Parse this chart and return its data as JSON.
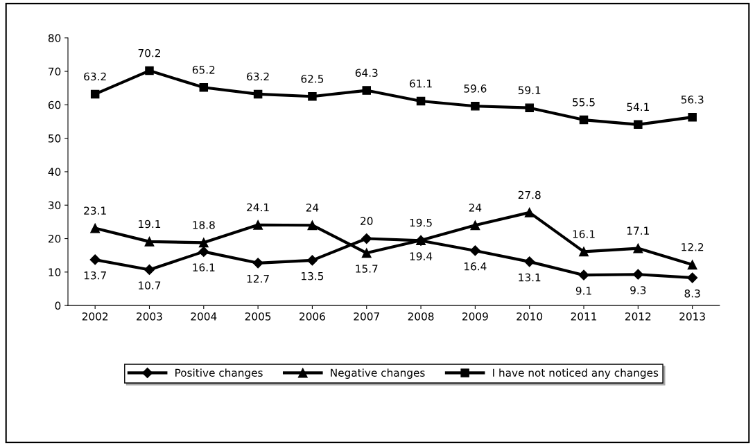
{
  "chart_data": {
    "type": "line",
    "categories": [
      "2002",
      "2003",
      "2004",
      "2005",
      "2006",
      "2007",
      "2008",
      "2009",
      "2010",
      "2011",
      "2012",
      "2013"
    ],
    "series": [
      {
        "name": "Positive changes",
        "color": "#000000",
        "marker": "diamond",
        "values": [
          13.7,
          10.7,
          16.1,
          12.7,
          13.5,
          20,
          19.4,
          16.4,
          13.1,
          9.1,
          9.3,
          8.3
        ]
      },
      {
        "name": "Negative changes",
        "color": "#000000",
        "marker": "triangle",
        "values": [
          23.1,
          19.1,
          18.8,
          24.1,
          24,
          15.7,
          19.5,
          24,
          27.8,
          16.1,
          17.1,
          12.2
        ]
      },
      {
        "name": "I have not noticed any changes",
        "color": "#000000",
        "marker": "square",
        "values": [
          63.2,
          70.2,
          65.2,
          63.2,
          62.5,
          64.3,
          61.1,
          59.6,
          59.1,
          55.5,
          54.1,
          56.3
        ]
      }
    ],
    "ylim": [
      0,
      80
    ],
    "yticks": [
      0,
      10,
      20,
      30,
      40,
      50,
      60,
      70,
      80
    ],
    "grid": false,
    "legend": "bottom",
    "data_labels": true,
    "line_style": "solid"
  }
}
